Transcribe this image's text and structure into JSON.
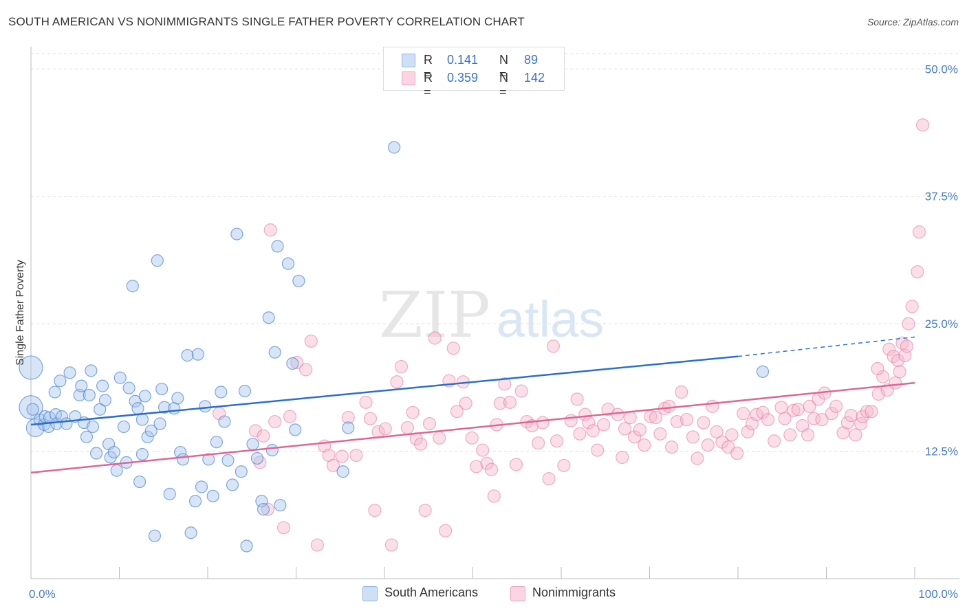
{
  "title": "SOUTH AMERICAN VS NONIMMIGRANTS SINGLE FATHER POVERTY CORRELATION CHART",
  "source": "Source: ZipAtlas.com",
  "watermark": {
    "zip": "ZIP",
    "atlas": "atlas"
  },
  "legend": {
    "rows": [
      {
        "r_label": "R =",
        "r_value": "0.141",
        "n_label": "N =",
        "n_value": "89",
        "color": "#a9c6ee"
      },
      {
        "r_label": "R =",
        "r_value": "0.359",
        "n_label": "N =",
        "n_value": "142",
        "color": "#f5b8cb"
      }
    ]
  },
  "bottom_legend": {
    "south": "South Americans",
    "nonimm": "Nonimmigrants"
  },
  "chart_data": {
    "type": "scatter",
    "title": "SOUTH AMERICAN VS NONIMMIGRANTS SINGLE FATHER POVERTY CORRELATION CHART",
    "ylabel": "Single Father Poverty",
    "xlabel": "",
    "x_tick_labels": [
      "0.0%",
      "100.0%"
    ],
    "y_tick_labels": [
      "12.5%",
      "25.0%",
      "37.5%",
      "50.0%"
    ],
    "y_tick_values": [
      12.5,
      25.0,
      37.5,
      50.0
    ],
    "xlim": [
      0,
      100
    ],
    "ylim": [
      0,
      51.5
    ],
    "grid": true,
    "legend_position": "top-center",
    "colors": {
      "south": "#4a86d4",
      "south_fill": "#a9c6ee",
      "nonimm": "#e4739a",
      "nonimm_fill": "#f5b8cb",
      "south_line": "#2a6fcf",
      "nonimm_line": "#e06593"
    },
    "series": [
      {
        "name": "South Americans",
        "R": 0.141,
        "N": 89,
        "trend": {
          "x0": 0,
          "y0": 15.1,
          "x1": 80,
          "y1": 21.8,
          "dash_to_x": 100,
          "dash_to_y": 23.7
        },
        "points": [
          [
            0,
            20.7
          ],
          [
            0,
            16.8
          ],
          [
            0.5,
            14.8
          ],
          [
            1,
            15.6
          ],
          [
            1.5,
            15.1
          ],
          [
            2,
            14.9
          ],
          [
            1.6,
            15.9
          ],
          [
            2.1,
            15.8
          ],
          [
            2.8,
            16.1
          ],
          [
            2.9,
            15.2
          ],
          [
            2.7,
            18.3
          ],
          [
            3.3,
            19.4
          ],
          [
            3.5,
            15.9
          ],
          [
            4,
            15.2
          ],
          [
            4.4,
            20.2
          ],
          [
            5,
            15.9
          ],
          [
            5.5,
            18.0
          ],
          [
            5.7,
            18.9
          ],
          [
            6,
            15.3
          ],
          [
            6.3,
            13.9
          ],
          [
            6.6,
            18.0
          ],
          [
            6.8,
            20.4
          ],
          [
            7,
            14.9
          ],
          [
            7.4,
            12.3
          ],
          [
            7.8,
            16.6
          ],
          [
            8.1,
            18.9
          ],
          [
            8.4,
            17.5
          ],
          [
            8.8,
            13.2
          ],
          [
            9,
            11.9
          ],
          [
            9.4,
            12.4
          ],
          [
            9.7,
            10.6
          ],
          [
            10.1,
            19.7
          ],
          [
            10.5,
            14.9
          ],
          [
            10.8,
            11.4
          ],
          [
            11.1,
            18.7
          ],
          [
            11.5,
            28.7
          ],
          [
            11.8,
            17.4
          ],
          [
            12.1,
            16.7
          ],
          [
            12.3,
            9.5
          ],
          [
            12.6,
            12.2
          ],
          [
            12.9,
            17.9
          ],
          [
            13.2,
            13.9
          ],
          [
            13.6,
            14.5
          ],
          [
            14,
            4.2
          ],
          [
            14.3,
            31.2
          ],
          [
            14.6,
            15.2
          ],
          [
            14.8,
            18.6
          ],
          [
            15.1,
            16.8
          ],
          [
            15.7,
            8.3
          ],
          [
            16.2,
            16.7
          ],
          [
            16.6,
            17.7
          ],
          [
            16.9,
            12.4
          ],
          [
            17.2,
            11.7
          ],
          [
            17.7,
            21.9
          ],
          [
            18.1,
            4.5
          ],
          [
            18.6,
            7.6
          ],
          [
            18.9,
            22.0
          ],
          [
            19.3,
            9.0
          ],
          [
            19.7,
            16.9
          ],
          [
            20.1,
            11.7
          ],
          [
            20.6,
            8.1
          ],
          [
            21,
            13.4
          ],
          [
            21.5,
            18.3
          ],
          [
            21.9,
            15.4
          ],
          [
            22.3,
            11.6
          ],
          [
            22.8,
            9.2
          ],
          [
            23.3,
            33.8
          ],
          [
            23.8,
            10.5
          ],
          [
            24.2,
            18.4
          ],
          [
            24.4,
            3.2
          ],
          [
            25.1,
            13.2
          ],
          [
            25.6,
            11.8
          ],
          [
            26.1,
            7.6
          ],
          [
            26.3,
            6.8
          ],
          [
            26.9,
            25.6
          ],
          [
            27.3,
            12.6
          ],
          [
            27.6,
            22.2
          ],
          [
            27.9,
            32.6
          ],
          [
            28.2,
            7.2
          ],
          [
            29.1,
            30.9
          ],
          [
            29.6,
            21.1
          ],
          [
            29.9,
            14.6
          ],
          [
            30.3,
            29.2
          ],
          [
            35.3,
            10.5
          ],
          [
            35.9,
            14.8
          ],
          [
            41.1,
            42.3
          ],
          [
            82.8,
            20.3
          ],
          [
            0.2,
            16.6
          ],
          [
            12.6,
            15.6
          ]
        ]
      },
      {
        "name": "Nonimmigrants",
        "R": 0.359,
        "N": 142,
        "trend": {
          "x0": 0,
          "y0": 10.4,
          "x1": 100,
          "y1": 19.2
        },
        "points": [
          [
            21.3,
            16.2
          ],
          [
            25.4,
            14.5
          ],
          [
            25.9,
            11.4
          ],
          [
            26.3,
            14.0
          ],
          [
            26.8,
            6.8
          ],
          [
            27.1,
            34.2
          ],
          [
            27.6,
            15.4
          ],
          [
            28.6,
            5.0
          ],
          [
            29.3,
            15.9
          ],
          [
            30.1,
            21.2
          ],
          [
            31.1,
            20.5
          ],
          [
            31.7,
            23.3
          ],
          [
            32.4,
            3.3
          ],
          [
            33.2,
            13.0
          ],
          [
            33.7,
            12.1
          ],
          [
            34.2,
            11.1
          ],
          [
            35.2,
            12.0
          ],
          [
            35.9,
            15.8
          ],
          [
            36.8,
            12.1
          ],
          [
            37.9,
            17.3
          ],
          [
            38.4,
            15.7
          ],
          [
            38.9,
            6.7
          ],
          [
            39.3,
            14.4
          ],
          [
            40.1,
            14.7
          ],
          [
            40.8,
            3.3
          ],
          [
            41.4,
            19.3
          ],
          [
            41.9,
            20.8
          ],
          [
            42.6,
            14.8
          ],
          [
            43.2,
            16.3
          ],
          [
            43.6,
            13.7
          ],
          [
            44.1,
            13.2
          ],
          [
            44.6,
            6.7
          ],
          [
            45.1,
            15.2
          ],
          [
            45.7,
            23.6
          ],
          [
            46.2,
            13.8
          ],
          [
            46.9,
            4.7
          ],
          [
            47.3,
            19.4
          ],
          [
            47.8,
            22.6
          ],
          [
            48.2,
            16.4
          ],
          [
            48.9,
            19.3
          ],
          [
            49.2,
            17.2
          ],
          [
            49.9,
            13.8
          ],
          [
            50.4,
            11.0
          ],
          [
            51.1,
            12.6
          ],
          [
            51.6,
            11.3
          ],
          [
            52.1,
            10.7
          ],
          [
            52.4,
            8.1
          ],
          [
            52.7,
            15.1
          ],
          [
            53.1,
            17.2
          ],
          [
            53.6,
            19.1
          ],
          [
            54.2,
            17.3
          ],
          [
            54.9,
            11.2
          ],
          [
            55.5,
            18.4
          ],
          [
            56.1,
            15.4
          ],
          [
            56.7,
            15.0
          ],
          [
            57.4,
            13.3
          ],
          [
            57.9,
            15.3
          ],
          [
            58.6,
            9.8
          ],
          [
            59.1,
            22.8
          ],
          [
            59.5,
            13.5
          ],
          [
            60.3,
            11.1
          ],
          [
            61.1,
            15.5
          ],
          [
            61.8,
            17.6
          ],
          [
            62.1,
            14.2
          ],
          [
            62.7,
            16.1
          ],
          [
            63.1,
            15.3
          ],
          [
            63.6,
            14.5
          ],
          [
            64.1,
            12.6
          ],
          [
            64.8,
            15.1
          ],
          [
            65.3,
            16.6
          ],
          [
            66.4,
            16.1
          ],
          [
            66.9,
            11.9
          ],
          [
            67.2,
            14.7
          ],
          [
            67.8,
            15.8
          ],
          [
            68.3,
            13.9
          ],
          [
            68.9,
            14.6
          ],
          [
            69.4,
            13.1
          ],
          [
            70.1,
            15.9
          ],
          [
            70.7,
            15.8
          ],
          [
            71.2,
            14.2
          ],
          [
            71.7,
            16.7
          ],
          [
            72.2,
            16.9
          ],
          [
            72.5,
            12.9
          ],
          [
            73.1,
            15.4
          ],
          [
            73.6,
            18.3
          ],
          [
            74.2,
            15.6
          ],
          [
            74.9,
            13.9
          ],
          [
            75.4,
            11.8
          ],
          [
            76.1,
            15.3
          ],
          [
            76.6,
            13.1
          ],
          [
            77.1,
            16.9
          ],
          [
            77.6,
            14.4
          ],
          [
            78.2,
            13.4
          ],
          [
            78.9,
            12.9
          ],
          [
            79.3,
            14.1
          ],
          [
            79.9,
            12.3
          ],
          [
            80.6,
            16.2
          ],
          [
            81.1,
            14.4
          ],
          [
            81.6,
            15.2
          ],
          [
            82.1,
            16.1
          ],
          [
            82.8,
            16.3
          ],
          [
            83.4,
            15.6
          ],
          [
            84.1,
            13.5
          ],
          [
            84.9,
            16.8
          ],
          [
            85.3,
            15.7
          ],
          [
            85.9,
            14.1
          ],
          [
            86.3,
            16.5
          ],
          [
            86.8,
            16.6
          ],
          [
            87.3,
            15.0
          ],
          [
            87.9,
            14.1
          ],
          [
            88.1,
            16.9
          ],
          [
            88.6,
            15.7
          ],
          [
            89.1,
            17.6
          ],
          [
            89.5,
            15.6
          ],
          [
            89.8,
            18.2
          ],
          [
            90.6,
            16.2
          ],
          [
            91.1,
            16.9
          ],
          [
            91.9,
            14.3
          ],
          [
            92.4,
            15.3
          ],
          [
            92.8,
            16.0
          ],
          [
            93.3,
            14.1
          ],
          [
            93.9,
            15.2
          ],
          [
            94.1,
            15.9
          ],
          [
            94.6,
            16.4
          ],
          [
            95.1,
            16.4
          ],
          [
            95.9,
            18.1
          ],
          [
            96.4,
            19.8
          ],
          [
            96.9,
            18.5
          ],
          [
            97.1,
            22.5
          ],
          [
            97.6,
            21.8
          ],
          [
            98.1,
            21.4
          ],
          [
            98.6,
            23.1
          ],
          [
            98.9,
            21.9
          ],
          [
            99.3,
            25.0
          ],
          [
            99.7,
            26.7
          ],
          [
            100.3,
            30.1
          ],
          [
            100.5,
            34.0
          ],
          [
            100.9,
            44.5
          ],
          [
            97.8,
            19.2
          ],
          [
            98.3,
            20.3
          ],
          [
            99.1,
            22.8
          ],
          [
            95.8,
            20.6
          ]
        ]
      }
    ]
  }
}
